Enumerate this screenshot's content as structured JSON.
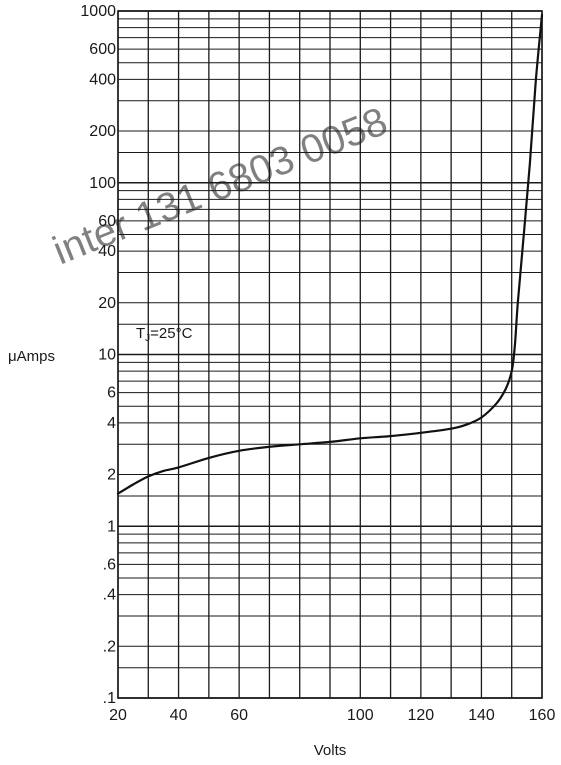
{
  "chart_data": {
    "type": "line",
    "xlabel": "Volts",
    "ylabel": "μAmps",
    "x_scale": "linear",
    "y_scale": "log",
    "xlim": [
      20,
      160
    ],
    "ylim": [
      0.1,
      1000
    ],
    "grid": true,
    "x_ticks": [
      20,
      30,
      40,
      50,
      60,
      70,
      80,
      90,
      100,
      110,
      120,
      130,
      140,
      150,
      160
    ],
    "x_tick_labels": [
      {
        "value": 20,
        "label": "20"
      },
      {
        "value": 40,
        "label": "40"
      },
      {
        "value": 60,
        "label": "60"
      },
      {
        "value": 100,
        "label": "100"
      },
      {
        "value": 120,
        "label": "120"
      },
      {
        "value": 140,
        "label": "140"
      },
      {
        "value": 160,
        "label": "160"
      }
    ],
    "y_grid_values": [
      0.1,
      0.15,
      0.2,
      0.3,
      0.4,
      0.5,
      0.6,
      0.7,
      0.8,
      0.9,
      1,
      1.5,
      2,
      3,
      4,
      5,
      6,
      7,
      8,
      9,
      10,
      15,
      20,
      30,
      40,
      50,
      60,
      70,
      80,
      90,
      100,
      150,
      200,
      300,
      400,
      500,
      600,
      700,
      800,
      900,
      1000
    ],
    "y_tick_labels": [
      {
        "value": 1000,
        "label": "1000"
      },
      {
        "value": 600,
        "label": "600"
      },
      {
        "value": 400,
        "label": "400"
      },
      {
        "value": 200,
        "label": "200"
      },
      {
        "value": 100,
        "label": "100"
      },
      {
        "value": 60,
        "label": "60"
      },
      {
        "value": 40,
        "label": "40"
      },
      {
        "value": 20,
        "label": "20"
      },
      {
        "value": 10,
        "label": "10"
      },
      {
        "value": 6,
        "label": "6"
      },
      {
        "value": 4,
        "label": "4"
      },
      {
        "value": 2,
        "label": "2"
      },
      {
        "value": 1,
        "label": "1"
      },
      {
        "value": 0.6,
        "label": ".6"
      },
      {
        "value": 0.4,
        "label": ".4"
      },
      {
        "value": 0.2,
        "label": ".2"
      },
      {
        "value": 0.1,
        "label": ".1"
      }
    ],
    "annotation": "TJ=25°C",
    "series": [
      {
        "x": [
          20,
          25,
          30,
          35,
          40,
          50,
          60,
          70,
          80,
          90,
          100,
          110,
          120,
          130,
          135,
          140,
          145,
          148,
          150,
          151,
          152,
          154,
          156,
          158,
          160
        ],
        "y": [
          1.55,
          1.75,
          1.95,
          2.1,
          2.2,
          2.5,
          2.75,
          2.9,
          3.0,
          3.1,
          3.25,
          3.35,
          3.5,
          3.7,
          3.9,
          4.3,
          5.2,
          6.3,
          8.0,
          11.0,
          20.0,
          50.0,
          130.0,
          400.0,
          950.0
        ]
      }
    ]
  },
  "watermark": "inter 131 6803 0058",
  "colors": {
    "grid": "#1a1a1a",
    "curve": "#111111",
    "background": "#ffffff",
    "watermark": "#9a9a9a"
  }
}
